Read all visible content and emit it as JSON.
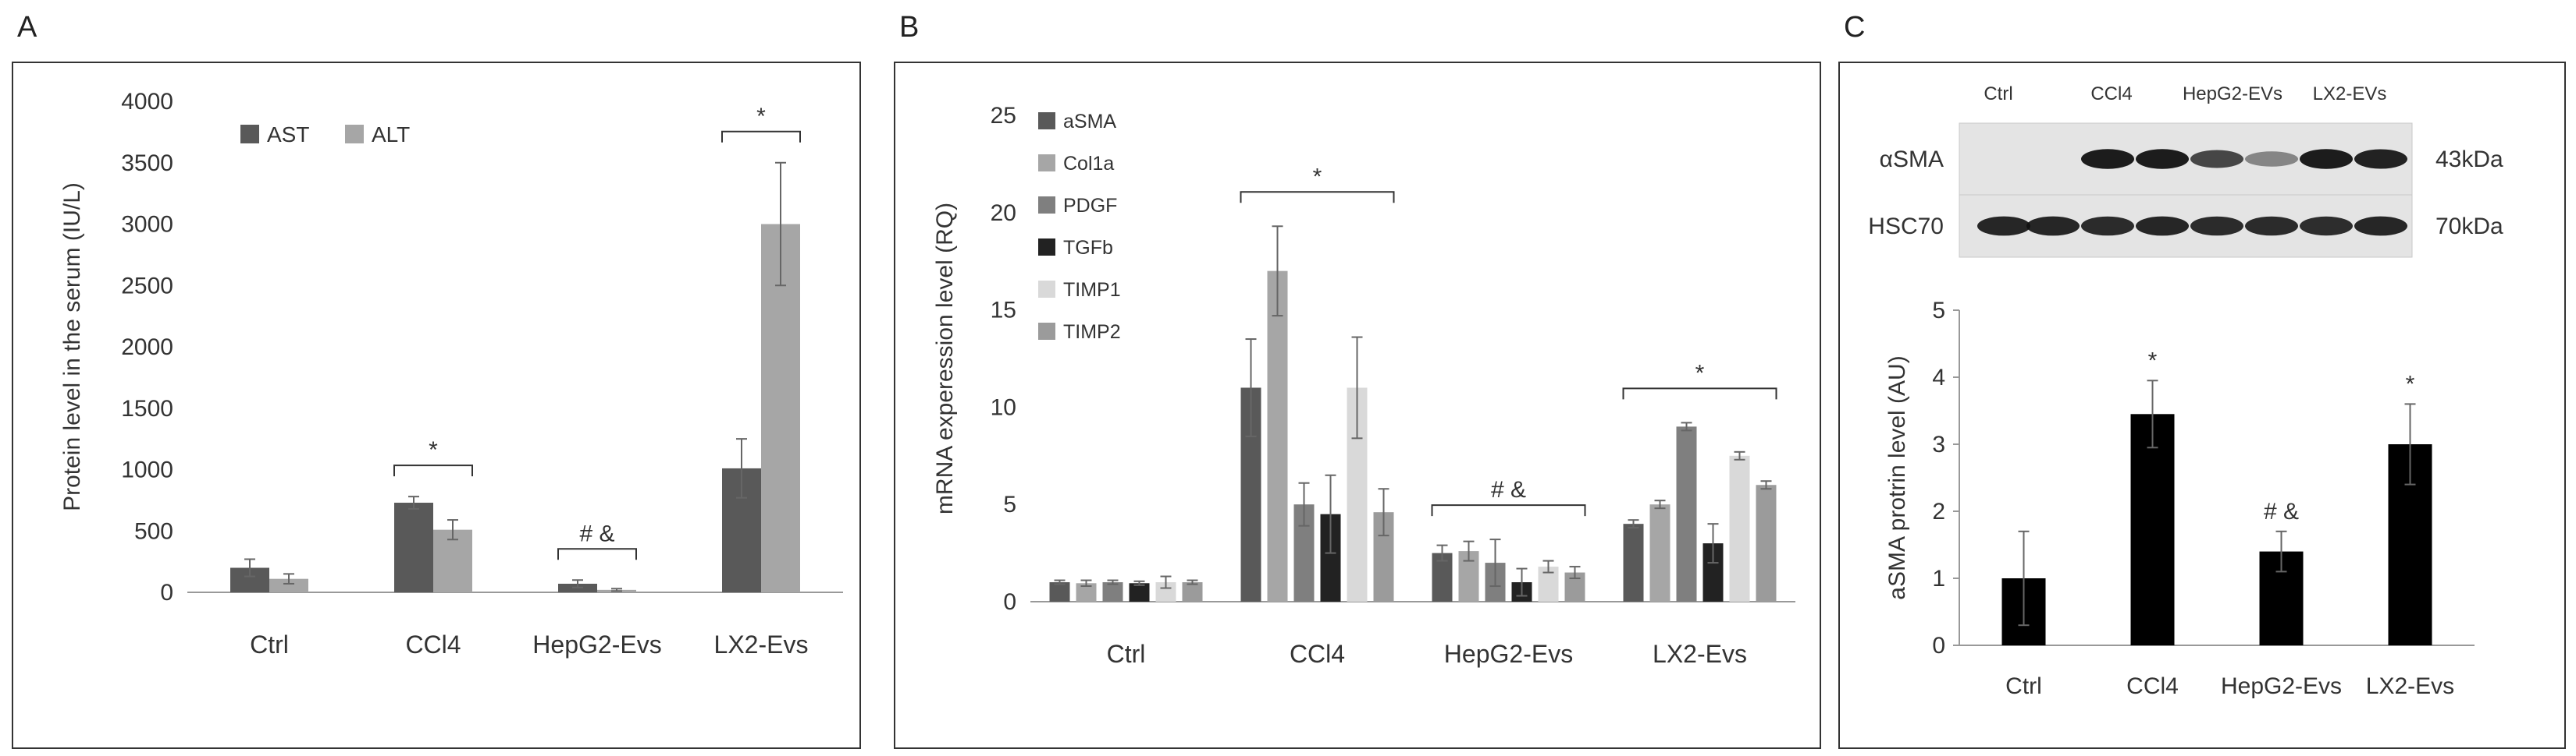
{
  "panels": {
    "A": {
      "letter": "A"
    },
    "B": {
      "letter": "B"
    },
    "C": {
      "letter": "C"
    }
  },
  "colors": {
    "AST": "#595959",
    "ALT": "#a6a6a6",
    "aSMA": "#595959",
    "Col1a": "#a6a6a6",
    "PDGF": "#7f7f7f",
    "TGFb": "#222222",
    "TIMP1": "#d9d9d9",
    "TIMP2": "#9b9b9b",
    "C": "#000000"
  },
  "blot": {
    "columns": [
      "Ctrl",
      "CCl4",
      "HepG2-EVs",
      "LX2-EVs"
    ],
    "rows": [
      {
        "label": "αSMA",
        "size": "43kDa",
        "intensity": [
          0.02,
          0.02,
          0.95,
          0.95,
          0.75,
          0.45,
          0.95,
          0.92
        ]
      },
      {
        "label": "HSC70",
        "size": "70kDa",
        "intensity": [
          0.9,
          0.9,
          0.88,
          0.9,
          0.88,
          0.88,
          0.87,
          0.9
        ]
      }
    ]
  },
  "chart_data": [
    {
      "type": "bar",
      "panel": "A",
      "categories": [
        "Ctrl",
        "CCl4",
        "HepG2-Evs",
        "LX2-Evs"
      ],
      "series": [
        {
          "name": "AST",
          "values": [
            200,
            730,
            70,
            1010
          ],
          "errors": [
            70,
            50,
            30,
            240
          ]
        },
        {
          "name": "ALT",
          "values": [
            110,
            510,
            20,
            3000
          ],
          "errors": [
            40,
            80,
            10,
            500
          ]
        }
      ],
      "title": "",
      "xlabel": "",
      "ylabel": "Protein level in the serum (IU/L)",
      "ylim": [
        0,
        4000
      ],
      "yticks": [
        0,
        500,
        1000,
        1500,
        2000,
        2500,
        3000,
        3500,
        4000
      ],
      "legend": "top-left",
      "annotations": [
        {
          "category": 1,
          "text": "*",
          "bracket": true
        },
        {
          "category": 2,
          "text": "# &",
          "bracket": true
        },
        {
          "category": 3,
          "text": "*",
          "bracket": true
        }
      ]
    },
    {
      "type": "bar",
      "panel": "B",
      "categories": [
        "Ctrl",
        "CCl4",
        "HepG2-Evs",
        "LX2-Evs"
      ],
      "series": [
        {
          "name": "aSMA",
          "values": [
            1,
            11,
            2.5,
            4
          ],
          "errors": [
            0.1,
            2.5,
            0.4,
            0.2
          ]
        },
        {
          "name": "Col1a",
          "values": [
            0.95,
            17,
            2.6,
            5
          ],
          "errors": [
            0.15,
            2.3,
            0.5,
            0.2
          ]
        },
        {
          "name": "PDGF",
          "values": [
            1,
            5,
            2,
            9
          ],
          "errors": [
            0.1,
            1.1,
            1.2,
            0.2
          ]
        },
        {
          "name": "TGFb",
          "values": [
            0.95,
            4.5,
            1,
            3
          ],
          "errors": [
            0.1,
            2,
            0.7,
            1
          ]
        },
        {
          "name": "TIMP1",
          "values": [
            1,
            11,
            1.8,
            7.5
          ],
          "errors": [
            0.3,
            2.6,
            0.3,
            0.2
          ]
        },
        {
          "name": "TIMP2",
          "values": [
            1,
            4.6,
            1.5,
            6
          ],
          "errors": [
            0.1,
            1.2,
            0.3,
            0.2
          ]
        }
      ],
      "title": "",
      "xlabel": "",
      "ylabel": "mRNA experession level (RQ)",
      "ylim": [
        0,
        25
      ],
      "yticks": [
        0,
        5,
        10,
        15,
        20,
        25
      ],
      "legend": "top-left",
      "annotations": [
        {
          "category": 1,
          "text": "*",
          "bracket": true
        },
        {
          "category": 2,
          "text": "# &",
          "bracket": true
        },
        {
          "category": 3,
          "text": "*",
          "bracket": true
        }
      ]
    },
    {
      "type": "bar",
      "panel": "C",
      "categories": [
        "Ctrl",
        "CCl4",
        "HepG2-Evs",
        "LX2-Evs"
      ],
      "series": [
        {
          "name": "aSMA",
          "values": [
            1,
            3.45,
            1.4,
            3
          ],
          "errors": [
            0.7,
            0.5,
            0.3,
            0.6
          ]
        }
      ],
      "title": "",
      "xlabel": "",
      "ylabel": "aSMA protrin level (AU)",
      "ylim": [
        0,
        5
      ],
      "yticks": [
        0,
        1,
        2,
        3,
        4,
        5
      ],
      "legend": "none",
      "annotations": [
        {
          "category": 1,
          "text": "*",
          "bracket": false
        },
        {
          "category": 2,
          "text": "# &",
          "bracket": false
        },
        {
          "category": 3,
          "text": "*",
          "bracket": false
        }
      ]
    }
  ]
}
